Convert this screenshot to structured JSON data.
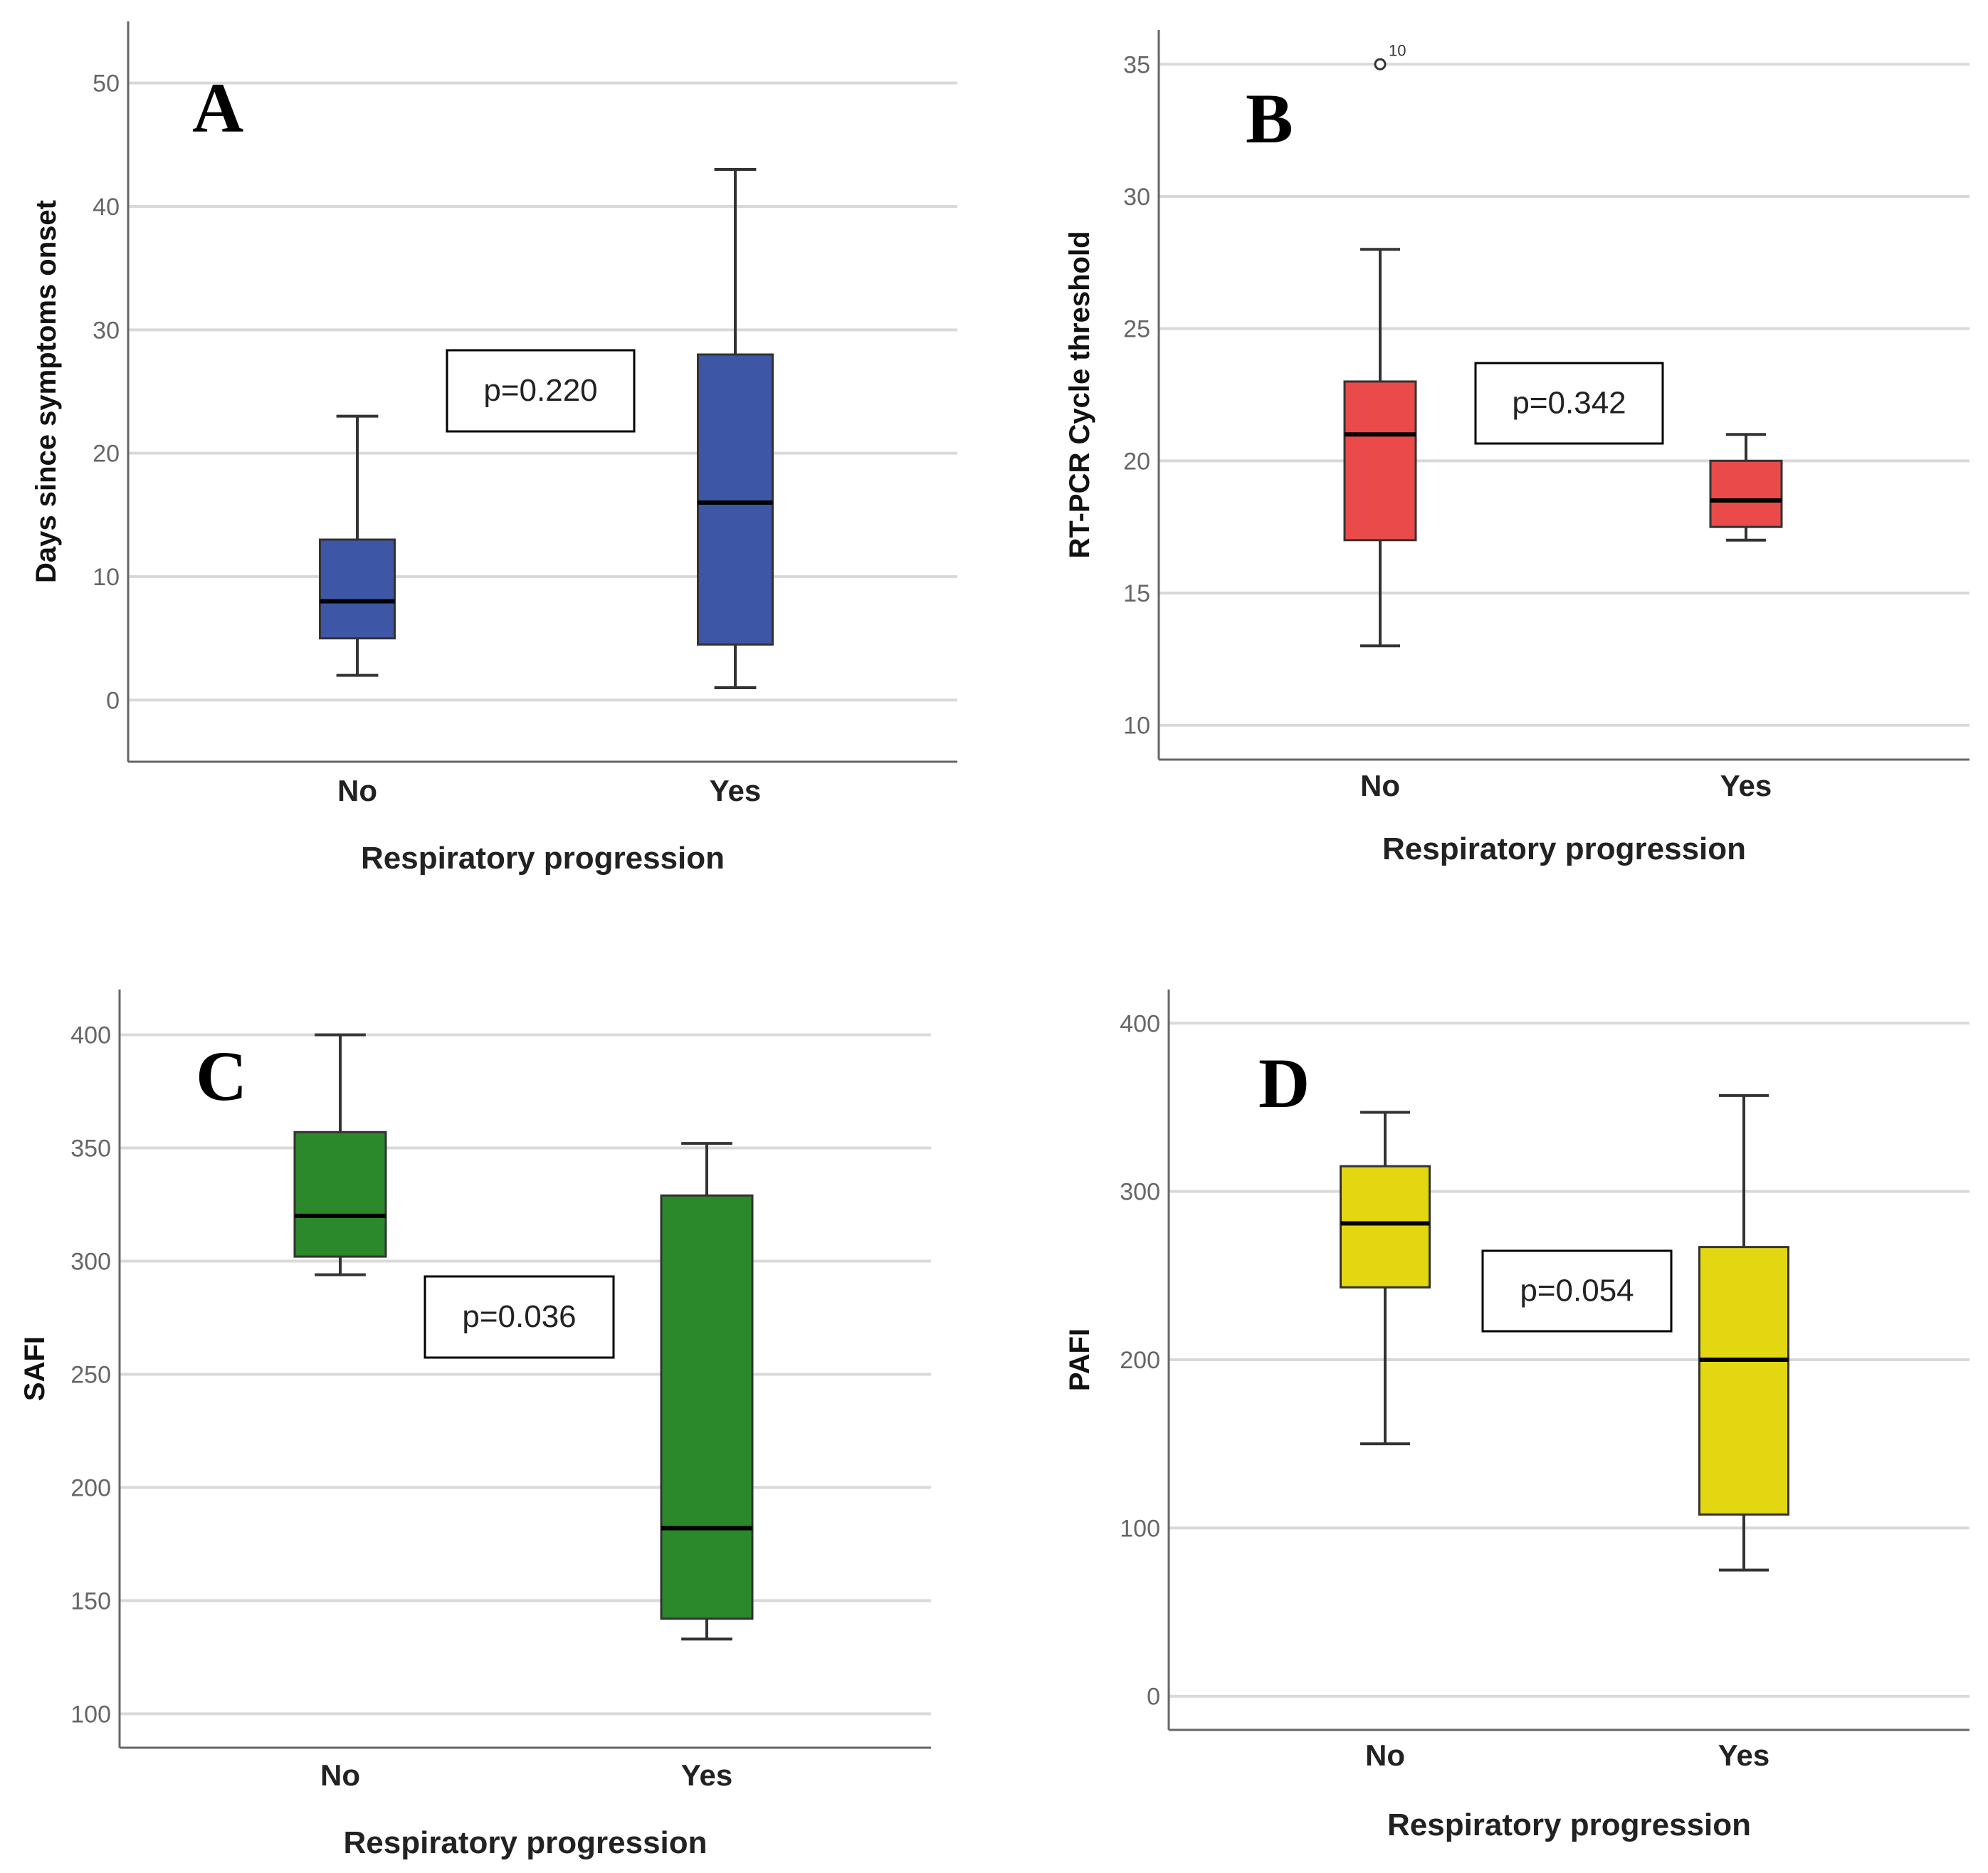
{
  "chart_data": [
    {
      "type": "box",
      "panel_letter": "A",
      "xlabel": "Respiratory progression",
      "ylabel": "Days since symptoms onset",
      "ylim": [
        -5,
        55
      ],
      "yticks": [
        "0",
        "10",
        "20",
        "30",
        "40",
        "50"
      ],
      "ytick_values": [
        0,
        10,
        20,
        30,
        40,
        50
      ],
      "grid": true,
      "categories": [
        "No",
        "Yes"
      ],
      "boxes": [
        {
          "category": "No",
          "min": 2,
          "q1": 5,
          "median": 8,
          "q3": 13,
          "max": 23
        },
        {
          "category": "Yes",
          "min": 1,
          "q1": 4.5,
          "median": 16,
          "q3": 28,
          "max": 43
        }
      ],
      "outliers": [],
      "annotation": "p=0.220",
      "color": "#3d56a6"
    },
    {
      "type": "box",
      "panel_letter": "B",
      "xlabel": "Respiratory progression",
      "ylabel": "RT-PCR Cycle threshold",
      "ylim": [
        8.7,
        36.3
      ],
      "yticks": [
        "10",
        "15",
        "20",
        "25",
        "30",
        "35"
      ],
      "ytick_values": [
        10,
        15,
        20,
        25,
        30,
        35
      ],
      "grid": true,
      "categories": [
        "No",
        "Yes"
      ],
      "boxes": [
        {
          "category": "No",
          "min": 13,
          "q1": 17,
          "median": 21,
          "q3": 23,
          "max": 28
        },
        {
          "category": "Yes",
          "min": 17,
          "q1": 17.5,
          "median": 18.5,
          "q3": 20,
          "max": 21
        }
      ],
      "outliers": [
        {
          "category": "No",
          "value": 35,
          "label": "10"
        }
      ],
      "annotation": "p=0.342",
      "color": "#eb4a4a"
    },
    {
      "type": "box",
      "panel_letter": "C",
      "xlabel": "Respiratory progression",
      "ylabel": "SAFI",
      "ylim": [
        85,
        420
      ],
      "yticks": [
        "100",
        "150",
        "200",
        "250",
        "300",
        "350",
        "400"
      ],
      "ytick_values": [
        100,
        150,
        200,
        250,
        300,
        350,
        400
      ],
      "grid": true,
      "categories": [
        "No",
        "Yes"
      ],
      "boxes": [
        {
          "category": "No",
          "min": 294,
          "q1": 302,
          "median": 320,
          "q3": 357,
          "max": 400
        },
        {
          "category": "Yes",
          "min": 133,
          "q1": 142,
          "median": 182,
          "q3": 329,
          "max": 352
        }
      ],
      "outliers": [],
      "annotation": "p=0.036",
      "color": "#2b882b"
    },
    {
      "type": "box",
      "panel_letter": "D",
      "xlabel": "Respiratory progression",
      "ylabel": "PAFI",
      "ylim": [
        -20,
        420
      ],
      "yticks": [
        "0",
        "100",
        "200",
        "300",
        "400"
      ],
      "ytick_values": [
        0,
        100,
        200,
        300,
        400
      ],
      "grid": true,
      "categories": [
        "No",
        "Yes"
      ],
      "boxes": [
        {
          "category": "No",
          "min": 150,
          "q1": 243,
          "median": 281,
          "q3": 315,
          "max": 347
        },
        {
          "category": "Yes",
          "min": 75,
          "q1": 108,
          "median": 200,
          "q3": 267,
          "max": 357
        }
      ],
      "outliers": [],
      "annotation": "p=0.054",
      "color": "#e3d712"
    }
  ]
}
